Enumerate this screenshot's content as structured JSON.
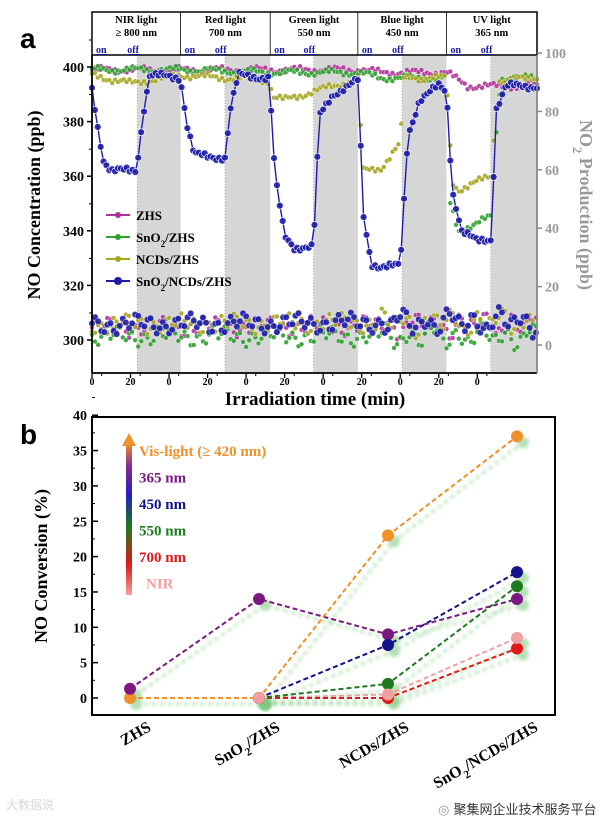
{
  "panel_a_label": "a",
  "panel_b_label": "b",
  "watermark_right": "聚集网企业技术服务平台",
  "watermark_left": "大数据说",
  "chart_data": [
    {
      "type": "line",
      "title": "",
      "xlabel": "Irradiation time (min)",
      "ylabel": "NO Concentration (ppb)",
      "ylabel_right": "NO2 Production (ppb)",
      "ylabel_right_parts": [
        "NO",
        "2",
        " Production (ppb)"
      ],
      "ylim": [
        285,
        405
      ],
      "ylim_right": [
        -5,
        100
      ],
      "yticks": [
        "300",
        "320",
        "340",
        "360",
        "380",
        "400"
      ],
      "yticks_values": [
        300,
        320,
        340,
        360,
        380,
        400
      ],
      "yticks_right": [
        "0",
        "20",
        "40",
        "60",
        "80",
        "100"
      ],
      "yticks_right_values": [
        0,
        20,
        40,
        60,
        80,
        100
      ],
      "xlim": [
        0,
        231
      ],
      "xticks": [
        "0",
        "20",
        "0",
        "20",
        "0",
        "20",
        "0",
        "20",
        "0",
        "20",
        "0"
      ],
      "xticks_values": [
        0,
        20,
        40,
        60,
        80,
        100,
        120,
        140,
        160,
        180,
        200
      ],
      "segments": [
        {
          "name": "NIR light",
          "wavelength": "≥ 800 nm",
          "on": "on",
          "off": "off",
          "start": 0,
          "off_start": 23.5,
          "end": 46
        },
        {
          "name": "Red light",
          "wavelength": "700 nm",
          "on": "on",
          "off": "off",
          "start": 46,
          "off_start": 69,
          "end": 92.5
        },
        {
          "name": "Green light",
          "wavelength": "550 nm",
          "on": "on",
          "off": "off",
          "start": 92.5,
          "off_start": 115,
          "end": 138
        },
        {
          "name": "Blue light",
          "wavelength": "450 nm",
          "on": "on",
          "off": "off",
          "start": 138,
          "off_start": 161,
          "end": 184
        },
        {
          "name": "UV light",
          "wavelength": "365 nm",
          "on": "on",
          "off": "off",
          "start": 184,
          "off_start": 207,
          "end": 231
        }
      ],
      "legend_position": "center-left",
      "series": [
        {
          "name": "ZHS",
          "color": "#b0309a",
          "no": [
            [
              0,
              399
            ],
            [
              90,
              399
            ],
            [
              140,
              399
            ],
            [
              150,
              398
            ],
            [
              184,
              398
            ],
            [
              195,
              393
            ],
            [
              231,
              393
            ]
          ],
          "no2": [
            [
              0,
              6
            ],
            [
              231,
              7
            ]
          ]
        },
        {
          "name": "SnO2/ZHS",
          "name_parts": [
            "SnO",
            "2",
            "/ZHS"
          ],
          "color": "#2ea02e",
          "no": [
            [
              0,
              399
            ],
            [
              46,
              399
            ],
            [
              92,
              398
            ],
            [
              138,
              398
            ],
            [
              150,
              396
            ],
            [
              184,
              396
            ],
            [
              186,
              350
            ],
            [
              190,
              340
            ],
            [
              207,
              345
            ],
            [
              212,
              396
            ],
            [
              231,
              396
            ]
          ],
          "no2": [
            [
              0,
              3
            ],
            [
              231,
              3
            ]
          ]
        },
        {
          "name": "NCDs/ZHS",
          "color": "#a5a520",
          "no": [
            [
              0,
              397
            ],
            [
              20,
              394
            ],
            [
              46,
              397
            ],
            [
              92,
              395
            ],
            [
              94,
              389
            ],
            [
              100,
              388
            ],
            [
              120,
              392
            ],
            [
              135,
              395
            ],
            [
              138,
              395
            ],
            [
              141,
              362
            ],
            [
              150,
              363
            ],
            [
              160,
              372
            ],
            [
              162,
              396
            ],
            [
              184,
              396
            ],
            [
              187,
              358
            ],
            [
              190,
              355
            ],
            [
              207,
              360
            ],
            [
              211,
              395
            ],
            [
              231,
              396
            ]
          ],
          "no2": [
            [
              0,
              7
            ],
            [
              231,
              8
            ]
          ]
        },
        {
          "name": "SnO2/NCDs/ZHS",
          "name_parts": [
            "SnO",
            "2",
            "/NCDs/ZHS"
          ],
          "color": "#1c1ca8",
          "no": [
            [
              0,
              392
            ],
            [
              3,
              378
            ],
            [
              6,
              366
            ],
            [
              10,
              362
            ],
            [
              23,
              362
            ],
            [
              27,
              385
            ],
            [
              30,
              397
            ],
            [
              46,
              396
            ],
            [
              49,
              380
            ],
            [
              53,
              368
            ],
            [
              60,
              367
            ],
            [
              69,
              367
            ],
            [
              72,
              385
            ],
            [
              76,
              397
            ],
            [
              92,
              396
            ],
            [
              95,
              360
            ],
            [
              100,
              338
            ],
            [
              105,
              334
            ],
            [
              115,
              334
            ],
            [
              118,
              382
            ],
            [
              125,
              390
            ],
            [
              138,
              395
            ],
            [
              141,
              345
            ],
            [
              145,
              328
            ],
            [
              150,
              327
            ],
            [
              160,
              327
            ],
            [
              164,
              375
            ],
            [
              170,
              388
            ],
            [
              180,
              393
            ],
            [
              184,
              391
            ],
            [
              187,
              355
            ],
            [
              192,
              340
            ],
            [
              200,
              336
            ],
            [
              207,
              337
            ],
            [
              210,
              385
            ],
            [
              215,
              393
            ],
            [
              231,
              393
            ]
          ],
          "no2": [
            [
              0,
              7
            ],
            [
              231,
              8
            ]
          ]
        }
      ]
    },
    {
      "type": "line",
      "xlabel": "",
      "ylabel": "NO Conversion (%)",
      "ylim": [
        -2.5,
        40
      ],
      "yticks": [
        "0",
        "5",
        "10",
        "15",
        "20",
        "25",
        "30",
        "35",
        "40"
      ],
      "yticks_values": [
        0,
        5,
        10,
        15,
        20,
        25,
        30,
        35,
        40
      ],
      "categories": [
        "ZHS",
        "SnO2/ZHS",
        "NCDs/ZHS",
        "SnO2/NCDs/ZHS"
      ],
      "category_parts": [
        [
          "ZHS",
          "",
          ""
        ],
        [
          "SnO",
          "2",
          "/ZHS"
        ],
        [
          "NCDs/ZHS",
          "",
          ""
        ],
        [
          "SnO",
          "2",
          "/NCDs/ZHS"
        ]
      ],
      "legend_position": "top-left",
      "series": [
        {
          "name": "Vis-light (≥ 420 nm)",
          "color": "#f0902a",
          "values": [
            0,
            0,
            23,
            37
          ]
        },
        {
          "name": "365 nm",
          "color": "#7a1a80",
          "values": [
            1.3,
            14,
            9,
            14
          ]
        },
        {
          "name": "450 nm",
          "color": "#12128a",
          "values": [
            null,
            0,
            7.5,
            17.8
          ]
        },
        {
          "name": "550 nm",
          "color": "#1e7a1e",
          "values": [
            null,
            0,
            2,
            15.8
          ]
        },
        {
          "name": "700 nm",
          "color": "#e01818",
          "values": [
            null,
            0,
            0,
            7
          ]
        },
        {
          "name": "NIR",
          "color": "#f0a0a0",
          "values": [
            null,
            0,
            0.5,
            8.5
          ]
        }
      ]
    }
  ]
}
